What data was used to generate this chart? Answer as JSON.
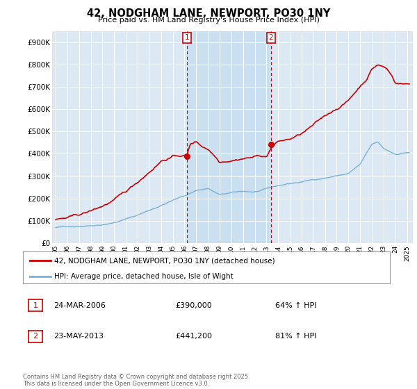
{
  "title": "42, NODGHAM LANE, NEWPORT, PO30 1NY",
  "subtitle": "Price paid vs. HM Land Registry's House Price Index (HPI)",
  "bg_color": "#dce9f5",
  "line1_color": "#cc0000",
  "line2_color": "#7ab0d4",
  "shade_color": "#c8dff0",
  "ylim": [
    0,
    950000
  ],
  "yticks": [
    0,
    100000,
    200000,
    300000,
    400000,
    500000,
    600000,
    700000,
    800000,
    900000
  ],
  "ytick_labels": [
    "£0",
    "£100K",
    "£200K",
    "£300K",
    "£400K",
    "£500K",
    "£600K",
    "£700K",
    "£800K",
    "£900K"
  ],
  "legend_label1": "42, NODGHAM LANE, NEWPORT, PO30 1NY (detached house)",
  "legend_label2": "HPI: Average price, detached house, Isle of Wight",
  "transaction1_date": "24-MAR-2006",
  "transaction1_price": "£390,000",
  "transaction1_pct": "64% ↑ HPI",
  "transaction2_date": "23-MAY-2013",
  "transaction2_price": "£441,200",
  "transaction2_pct": "81% ↑ HPI",
  "footnote": "Contains HM Land Registry data © Crown copyright and database right 2025.\nThis data is licensed under the Open Government Licence v3.0.",
  "vline1_x": 2006.23,
  "vline2_x": 2013.39,
  "marker1_y": 390000,
  "marker2_y": 441200,
  "xlim_left": 1994.7,
  "xlim_right": 2025.5
}
